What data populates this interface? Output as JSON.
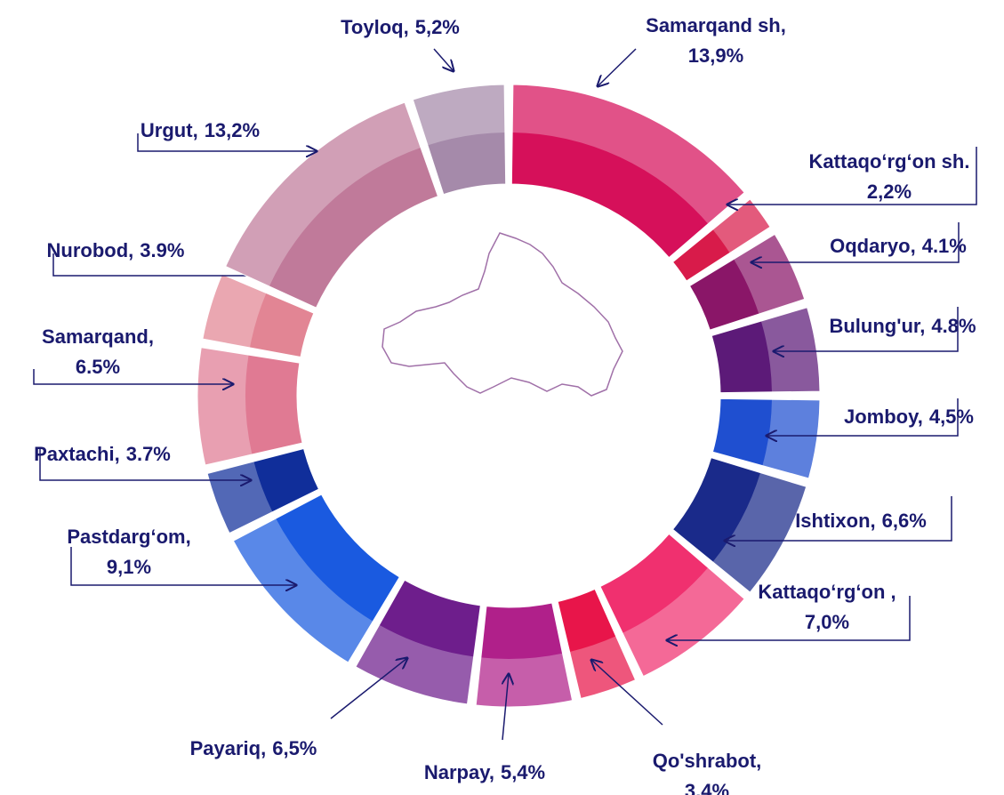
{
  "chart_data": {
    "type": "donut",
    "categories": [
      "Samarqand sh,",
      "Kattaqo‘rg‘on sh.",
      "Oqdaryo,",
      "Bulung'ur,",
      "Jomboy,",
      "Ishtixon,",
      "Kattaqo‘rg‘on ,",
      "Qo'shrabot,",
      "Narpay,",
      "Payariq,",
      "Pastdarg‘om,",
      "Paxtachi,",
      "Samarqand,",
      "Nurobod,",
      "Urgut,",
      "Toyloq,"
    ],
    "values": [
      13.9,
      2.2,
      4.1,
      4.8,
      4.5,
      6.6,
      7.0,
      3.4,
      5.4,
      6.5,
      9.1,
      3.7,
      6.5,
      3.9,
      13.2,
      5.2
    ],
    "value_labels": [
      "13,9%",
      "2,2%",
      "4.1%",
      "4.8%",
      "4,5%",
      "6,6%",
      "7,0%",
      "3,4%",
      "5,4%",
      "6,5%",
      "9,1%",
      "3.7%",
      "6.5%",
      "3.9%",
      "13,2%",
      "5,2%"
    ],
    "colors": [
      "#d6105a",
      "#d81b4a",
      "#8a1668",
      "#5c1a78",
      "#1f4fd0",
      "#1a2a8a",
      "#f0306f",
      "#e8154a",
      "#b0208a",
      "#6e1e8c",
      "#1a5ae0",
      "#102e9a",
      "#e07a93",
      "#e28594",
      "#c07a9a",
      "#a58aaa"
    ]
  }
}
